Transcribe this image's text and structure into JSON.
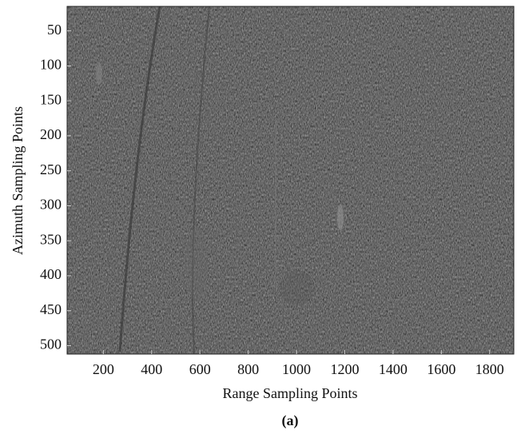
{
  "chart_data": {
    "type": "image",
    "xlabel": "Range Sampling Points",
    "ylabel": "Azimuth Sampling Points",
    "caption": "(a)",
    "xlim": [
      50,
      1900
    ],
    "xticks": [
      200,
      400,
      600,
      800,
      1000,
      1200,
      1400,
      1600,
      1800
    ],
    "ylim": [
      15,
      512
    ],
    "yticks": [
      50,
      100,
      150,
      200,
      250,
      300,
      350,
      400,
      450,
      500
    ],
    "y_inverted": true,
    "grid": false
  }
}
